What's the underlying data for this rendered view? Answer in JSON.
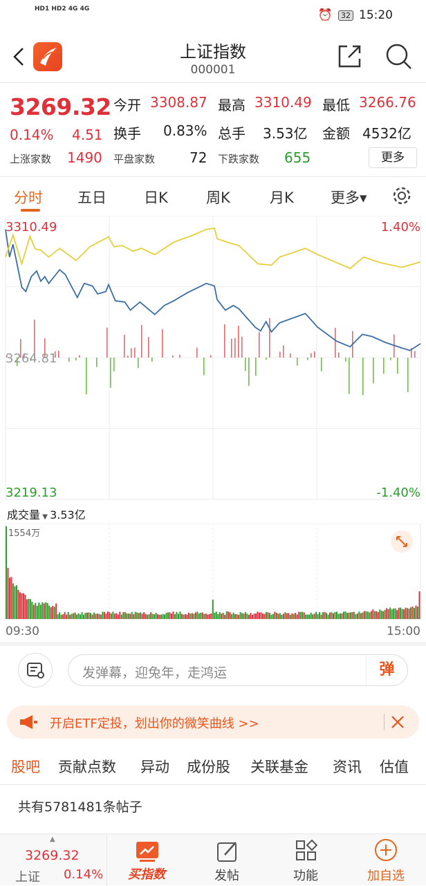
{
  "status_bar": {
    "signal": "HD1 HD2 4G 4G",
    "battery": "32",
    "time": "15:20"
  },
  "header": {
    "title": "上证指数",
    "code": "000001",
    "icons": [
      "back-icon",
      "app-logo",
      "share-icon",
      "search-icon"
    ]
  },
  "quote": {
    "price": "3269.32",
    "change_pct": "0.14%",
    "change": "4.51",
    "open_label": "今开",
    "open": "3308.87",
    "high_label": "最高",
    "high": "3310.49",
    "low_label": "最低",
    "low": "3266.76",
    "turnover_label": "换手",
    "turnover": "0.83%",
    "volume_label": "总手",
    "volume": "3.53亿",
    "amount_label": "金额",
    "amount": "4532亿",
    "up_label": "上涨家数",
    "up": "1490",
    "flat_label": "平盘家数",
    "flat": "72",
    "down_label": "下跌家数",
    "down": "655",
    "more": "更多"
  },
  "tabs": [
    "分时",
    "五日",
    "日K",
    "周K",
    "月K",
    "更多▾"
  ],
  "active_tab": 0,
  "colors": {
    "up": "#e0303a",
    "down": "#2a9d2a",
    "accent": "#e8661d",
    "index_line": "#3a6ea5",
    "avg_line": "#e6cf3c"
  },
  "chart_data": [
    {
      "type": "line",
      "ylim": [
        3219.13,
        3310.49
      ],
      "y_left_labels": {
        "top": "3310.49",
        "mid": "3264.81",
        "bottom": "3219.13"
      },
      "y_right_labels": {
        "top": "1.40%",
        "bottom": "-1.40%"
      },
      "x_range_minutes": [
        0,
        240
      ],
      "series": [
        {
          "key": "index",
          "x": [
            0,
            2.3,
            4.3,
            9.4,
            11.7,
            14.9,
            18,
            20.4,
            22.7,
            25,
            31.3,
            34.5,
            41.5,
            45.5,
            50.2,
            53.3,
            58,
            59.6,
            63.5,
            69,
            72.2,
            77.7,
            86.3,
            91.8,
            97.3,
            105.1,
            116.1,
            120.8,
            122.4,
            127.1,
            131.8,
            135,
            144.4,
            147.5,
            150.7,
            153.8,
            158.5,
            173.4,
            180.5,
            191.5,
            199.3,
            206.4,
            211.9,
            219.7,
            229.2,
            233.9,
            240
          ],
          "y": [
            3306.1,
            3297.2,
            3301.3,
            3287.5,
            3286.1,
            3290.9,
            3292.7,
            3289.4,
            3290.9,
            3288.7,
            3293.1,
            3291.6,
            3284.2,
            3288.7,
            3287.9,
            3285.3,
            3286.1,
            3288.3,
            3283.1,
            3282.7,
            3280.1,
            3282.7,
            3278.7,
            3281.6,
            3283.1,
            3285.7,
            3288.7,
            3287.9,
            3283.5,
            3280.1,
            3281.6,
            3280.5,
            3274.6,
            3273.4,
            3276.4,
            3273.1,
            3276.0,
            3279.0,
            3274.6,
            3270.1,
            3268.3,
            3272.3,
            3271.6,
            3269.7,
            3267.9,
            3267.1,
            3269.3
          ]
        },
        {
          "key": "average",
          "x": [
            0,
            4.3,
            9.4,
            14.1,
            17.2,
            20.4,
            25,
            31.3,
            40.8,
            48.7,
            59.6,
            62.7,
            67.5,
            73.7,
            78.5,
            86.3,
            97.3,
            106.7,
            116.1,
            120.8,
            122.4,
            130.3,
            135,
            146,
            153.8,
            158.5,
            173.4,
            180.5,
            191.5,
            199.3,
            207.2,
            216.6,
            229.2,
            240
          ],
          "y": [
            3297.2,
            3304.3,
            3295.0,
            3303.9,
            3299.8,
            3299.4,
            3297.2,
            3300.0,
            3296.1,
            3300.5,
            3303.7,
            3300.5,
            3300.9,
            3299.1,
            3300.0,
            3298.0,
            3302.0,
            3303.9,
            3306.1,
            3306.5,
            3303.1,
            3301.6,
            3300.9,
            3295.0,
            3294.6,
            3297.2,
            3300.0,
            3298.0,
            3295.4,
            3293.5,
            3297.2,
            3295.4,
            3293.9,
            3295.6
          ]
        }
      ]
    },
    {
      "type": "bar",
      "label": "成交量",
      "total": "3.53亿",
      "max_label": "1554万",
      "x_labels": [
        "09:30",
        "15:00"
      ]
    }
  ],
  "danmaku": {
    "placeholder": "发弹幕，迎兔年，走鸿运",
    "button": "弹"
  },
  "banner": {
    "text": "开启ETF定投，划出你的微笑曲线 >>"
  },
  "section_tabs": [
    "股吧",
    "贡献点数",
    "异动",
    "成份股",
    "关联基金",
    "资讯",
    "估值"
  ],
  "post_count": "共有5781481条帖子",
  "bottom_nav": {
    "price": "3269.32",
    "name": "上证",
    "pct": "0.14%",
    "items": [
      "买指数",
      "发帖",
      "功能",
      "加自选"
    ]
  }
}
